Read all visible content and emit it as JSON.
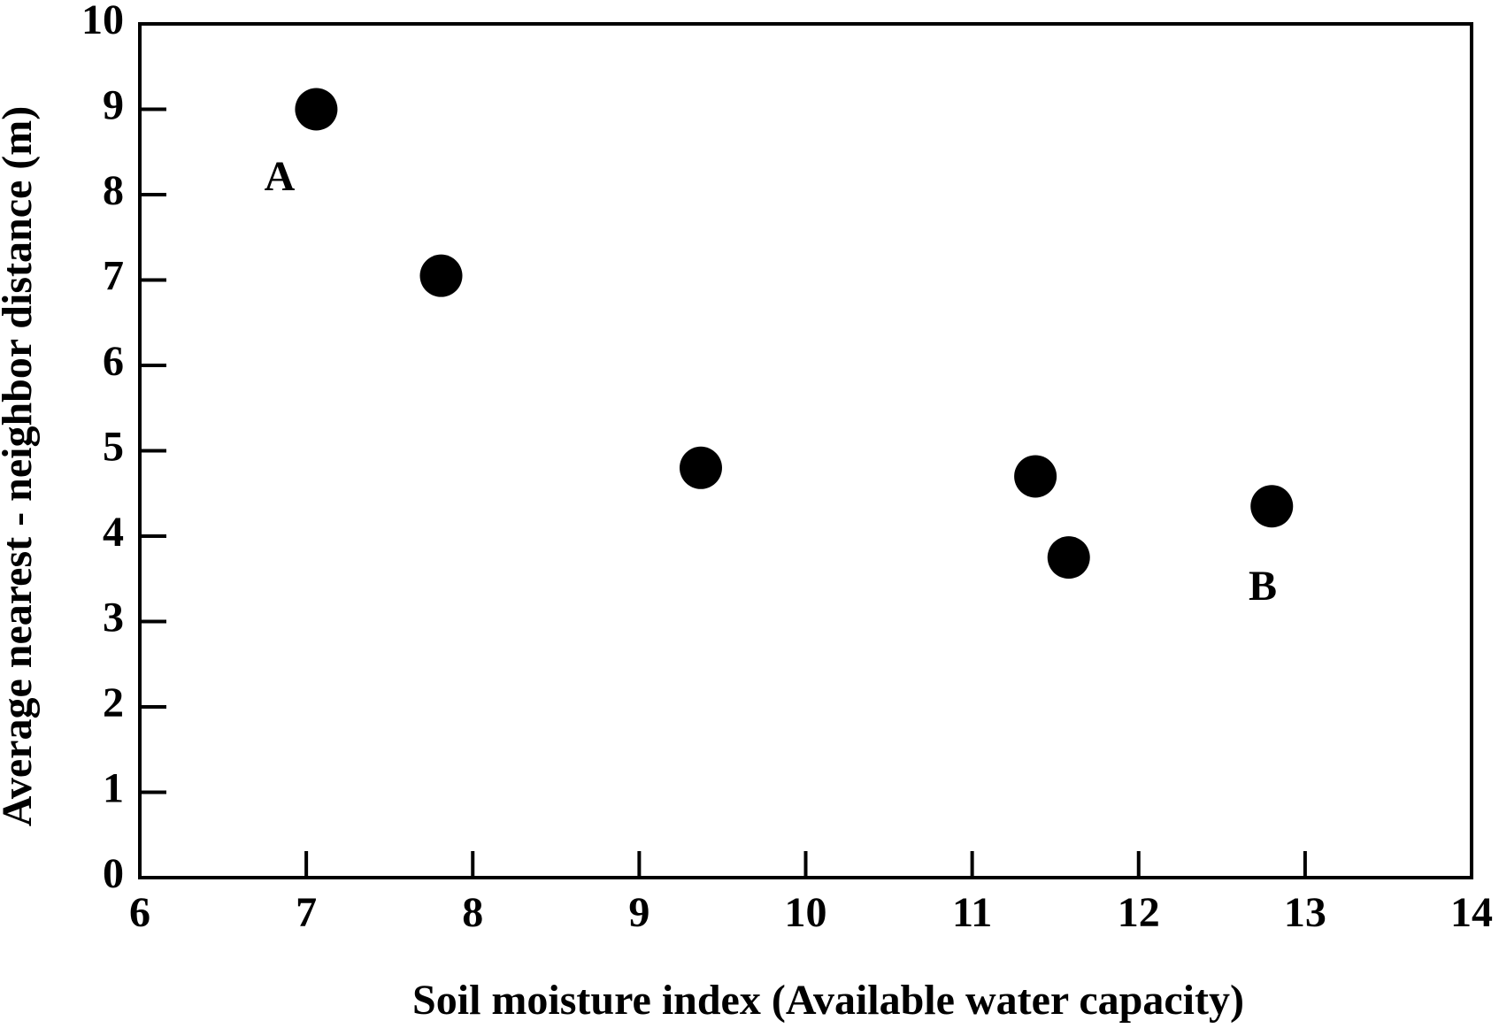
{
  "chart_data": {
    "type": "scatter",
    "x_label": "Soil moisture index (Available water capacity)",
    "y_label": "Average nearest - neighbor distance (m)",
    "x": [
      7.06,
      7.81,
      9.37,
      11.38,
      11.58,
      12.8
    ],
    "values": [
      9.0,
      7.05,
      4.8,
      4.7,
      3.75,
      4.35
    ],
    "color": "#000000",
    "annotations": [
      "A",
      "B"
    ],
    "xlim": [
      6,
      14
    ],
    "xticks": [
      6,
      7,
      8,
      9,
      10,
      11,
      12,
      13,
      14
    ],
    "ylim": [
      0,
      10
    ],
    "yticks": [
      0,
      1,
      2,
      3,
      4,
      5,
      6,
      7,
      8,
      9,
      10
    ],
    "grid": false
  }
}
